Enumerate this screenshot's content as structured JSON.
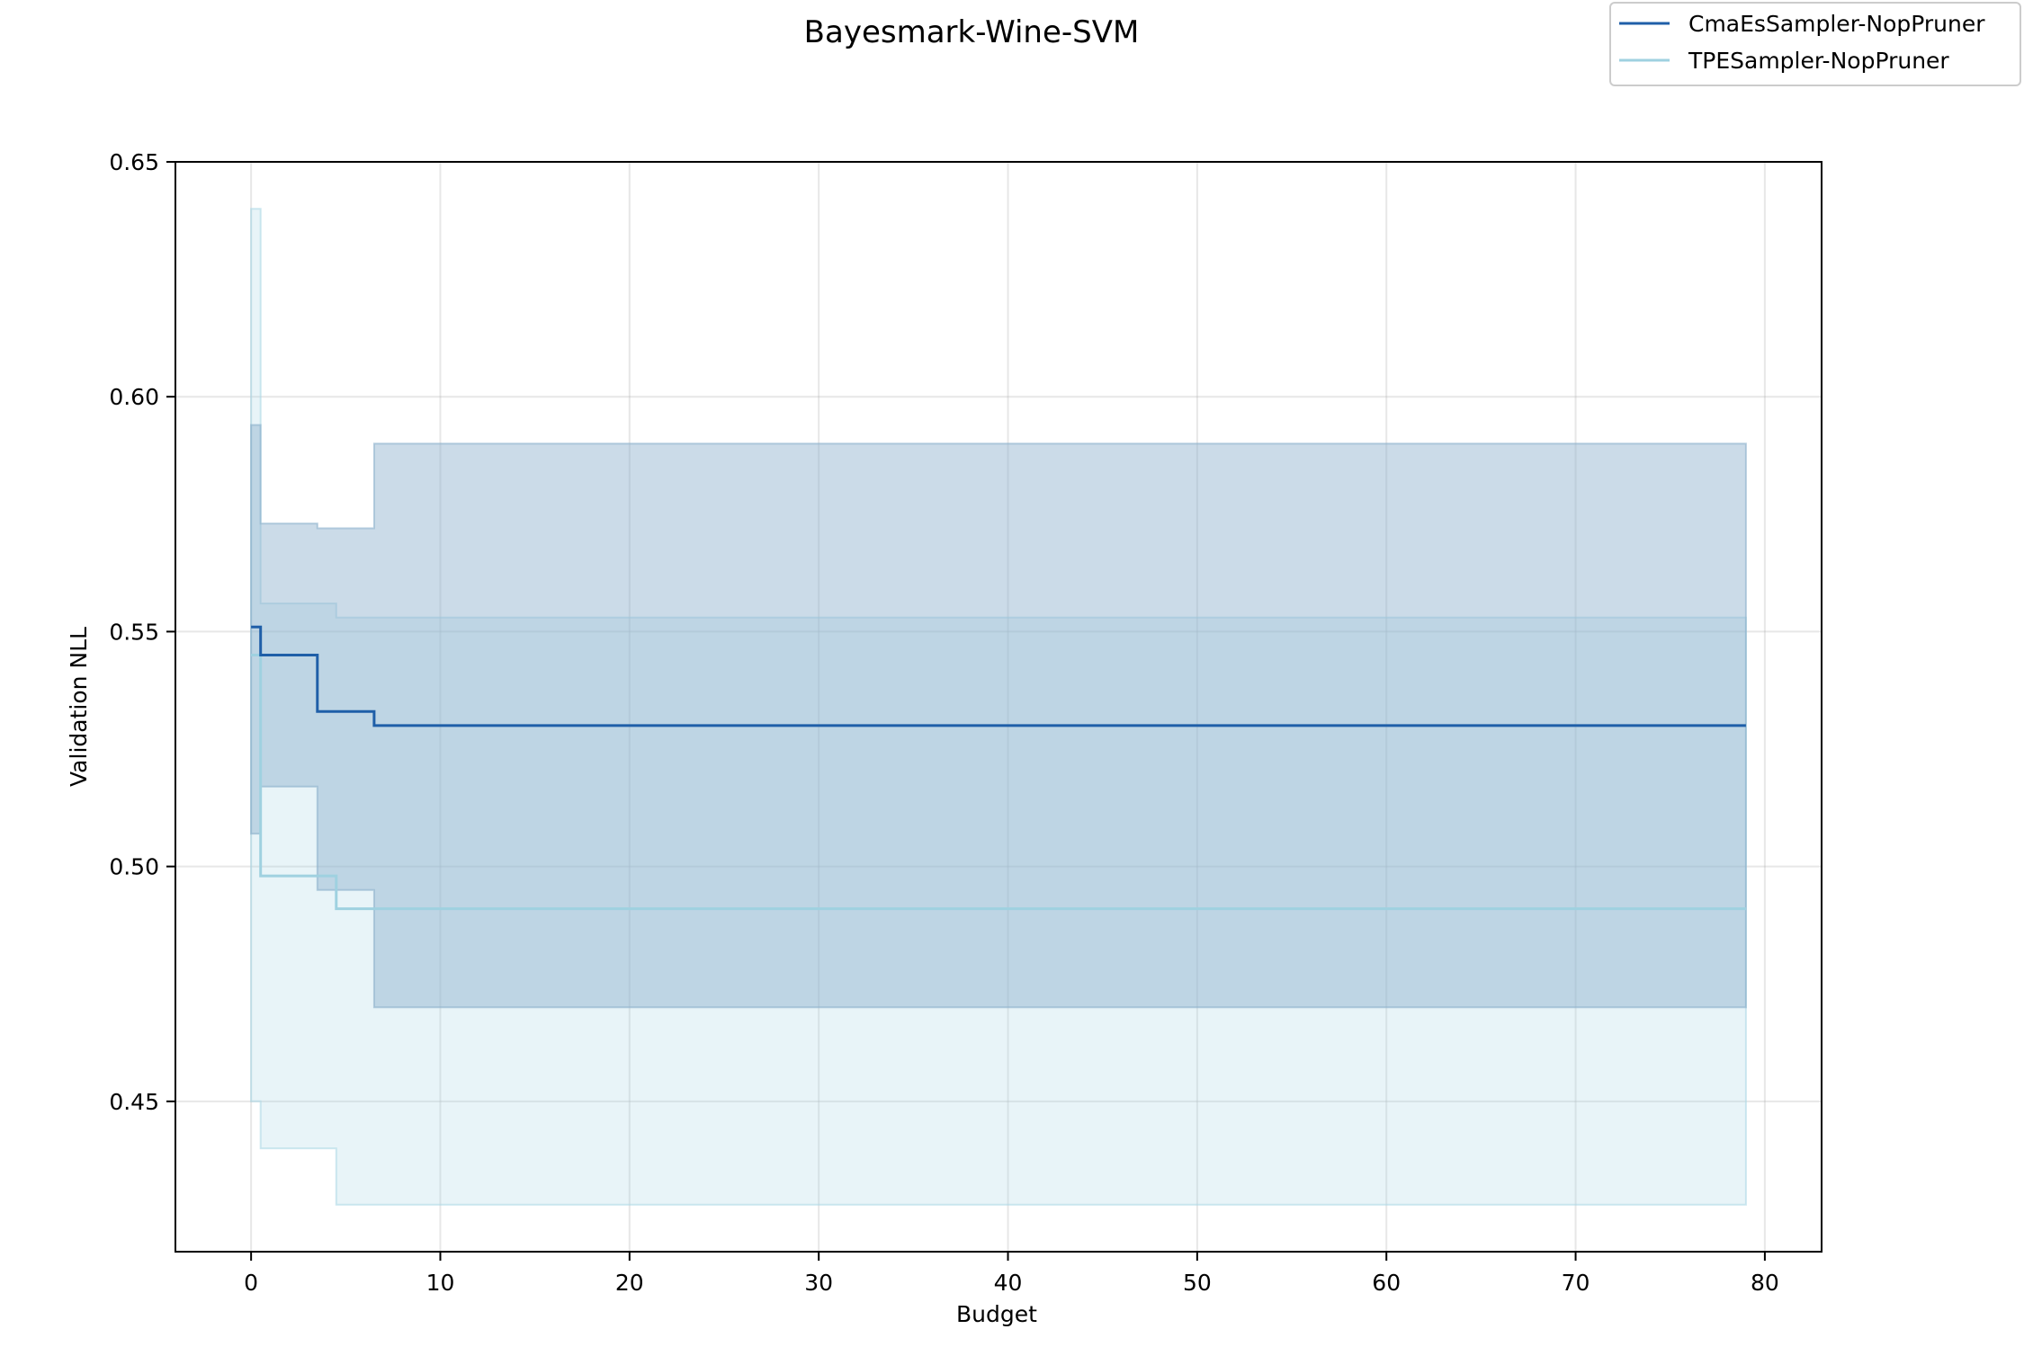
{
  "chart_data": {
    "type": "line",
    "title": "Bayesmark-Wine-SVM",
    "xlabel": "Budget",
    "ylabel": "Validation NLL",
    "xlim": [
      -4,
      83
    ],
    "ylim": [
      0.418,
      0.65
    ],
    "xticks": [
      "0",
      "10",
      "20",
      "30",
      "40",
      "50",
      "60",
      "70",
      "80"
    ],
    "xtick_values": [
      0,
      10,
      20,
      30,
      40,
      50,
      60,
      70,
      80
    ],
    "yticks": [
      "0.45",
      "0.50",
      "0.55",
      "0.60",
      "0.65"
    ],
    "ytick_values": [
      0.45,
      0.5,
      0.55,
      0.6,
      0.65
    ],
    "grid": true,
    "legend_position": "top-right",
    "series": [
      {
        "name": "CmaEsSampler-NopPruner",
        "color": "#1f5fa8",
        "band_color": "#8cb0cc",
        "step": true,
        "x": [
          0,
          0.5,
          3.5,
          6.5,
          79
        ],
        "mean": [
          0.551,
          0.545,
          0.533,
          0.53,
          0.53
        ],
        "upper": [
          0.594,
          0.573,
          0.572,
          0.59,
          0.59
        ],
        "lower": [
          0.507,
          0.517,
          0.495,
          0.47,
          0.47
        ]
      },
      {
        "name": "TPESampler-NopPruner",
        "color": "#9fd1e0",
        "band_color": "#add8e6",
        "step": true,
        "x": [
          0,
          0.5,
          4.5,
          6.5,
          79
        ],
        "mean": [
          0.545,
          0.498,
          0.491,
          0.491,
          0.491
        ],
        "upper": [
          0.64,
          0.556,
          0.553,
          0.553,
          0.553
        ],
        "lower": [
          0.45,
          0.44,
          0.428,
          0.428,
          0.428
        ]
      }
    ]
  }
}
